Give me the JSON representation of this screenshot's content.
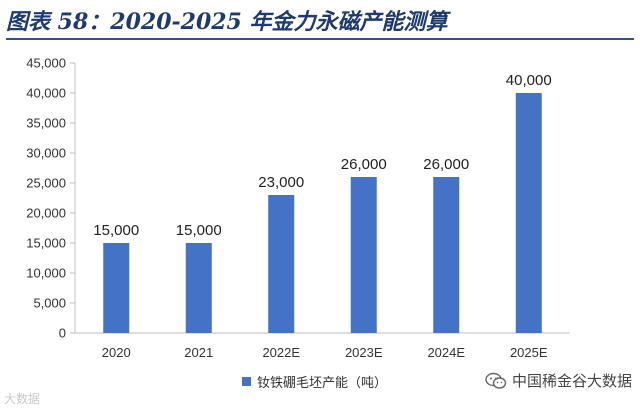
{
  "title": "图表 58：2020-2025 年金力永磁产能测算",
  "chart_data": {
    "type": "bar",
    "categories": [
      "2020",
      "2021",
      "2022E",
      "2023E",
      "2024E",
      "2025E"
    ],
    "series": [
      {
        "name": "钕铁硼毛坯产能（吨）",
        "values": [
          15000,
          15000,
          23000,
          26000,
          26000,
          40000
        ]
      }
    ],
    "data_labels": [
      "15,000",
      "15,000",
      "23,000",
      "26,000",
      "26,000",
      "40,000"
    ],
    "y_ticks": [
      "0",
      "5,000",
      "10,000",
      "15,000",
      "20,000",
      "25,000",
      "30,000",
      "35,000",
      "40,000",
      "45,000"
    ],
    "ylim": [
      0,
      45000
    ],
    "y_step": 5000,
    "grid": false,
    "legend_position": "bottom",
    "bar_color": "#4472c4"
  },
  "watermarks": {
    "left": "大数据",
    "right": "中国稀金谷大数据",
    "right_icon": "wechat-icon"
  }
}
